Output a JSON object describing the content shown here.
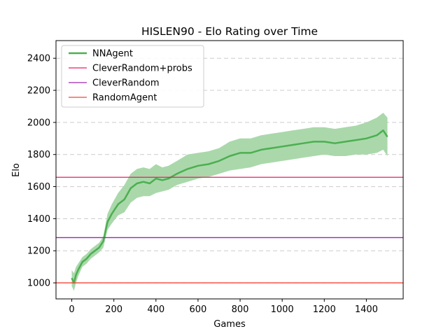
{
  "chart_data": {
    "type": "line",
    "title": "HISLEN90 - Elo Rating over Time",
    "xlabel": "Games",
    "ylabel": "Elo",
    "xlim": [
      -75,
      1575
    ],
    "ylim": [
      900,
      2510
    ],
    "xticks": [
      0,
      200,
      400,
      600,
      800,
      1000,
      1200,
      1400
    ],
    "yticks": [
      1000,
      1200,
      1400,
      1600,
      1800,
      2000,
      2200,
      2400
    ],
    "grid": "y-dashed",
    "legend_position": "top-left",
    "series": [
      {
        "name": "NNAgent",
        "kind": "line-with-band",
        "color": "#4caf50",
        "band_color": "#a5d6a7",
        "x": [
          0,
          10,
          20,
          30,
          50,
          70,
          90,
          110,
          130,
          150,
          170,
          190,
          220,
          250,
          280,
          310,
          340,
          370,
          400,
          430,
          460,
          500,
          550,
          600,
          650,
          700,
          750,
          800,
          850,
          900,
          950,
          1000,
          1050,
          1100,
          1150,
          1200,
          1250,
          1300,
          1350,
          1400,
          1450,
          1480,
          1500
        ],
        "y": [
          1030,
          1000,
          1050,
          1080,
          1130,
          1150,
          1180,
          1200,
          1220,
          1260,
          1380,
          1430,
          1490,
          1520,
          1590,
          1620,
          1630,
          1620,
          1650,
          1640,
          1650,
          1680,
          1710,
          1730,
          1740,
          1760,
          1790,
          1810,
          1810,
          1830,
          1840,
          1850,
          1860,
          1870,
          1880,
          1880,
          1870,
          1880,
          1890,
          1900,
          1920,
          1950,
          1910
        ],
        "lower": [
          980,
          950,
          1000,
          1040,
          1100,
          1120,
          1150,
          1170,
          1190,
          1220,
          1330,
          1370,
          1420,
          1440,
          1500,
          1530,
          1540,
          1540,
          1560,
          1570,
          1580,
          1610,
          1630,
          1650,
          1660,
          1680,
          1700,
          1710,
          1720,
          1740,
          1750,
          1760,
          1770,
          1780,
          1790,
          1800,
          1790,
          1790,
          1800,
          1800,
          1810,
          1830,
          1790
        ],
        "upper": [
          1080,
          1060,
          1100,
          1120,
          1160,
          1180,
          1210,
          1230,
          1250,
          1290,
          1430,
          1490,
          1560,
          1610,
          1680,
          1710,
          1720,
          1710,
          1740,
          1720,
          1730,
          1760,
          1800,
          1810,
          1820,
          1840,
          1880,
          1900,
          1900,
          1920,
          1930,
          1940,
          1950,
          1960,
          1970,
          1970,
          1960,
          1970,
          1980,
          2000,
          2030,
          2060,
          2030
        ]
      },
      {
        "name": "CleverRandom+probs",
        "kind": "hline",
        "color": "#e91e63",
        "value": 1658
      },
      {
        "name": "CleverRandom",
        "kind": "hline",
        "color": "#9c27b0",
        "value": 1282
      },
      {
        "name": "RandomAgent",
        "kind": "hline",
        "color": "#f44336",
        "value": 1000
      }
    ]
  }
}
